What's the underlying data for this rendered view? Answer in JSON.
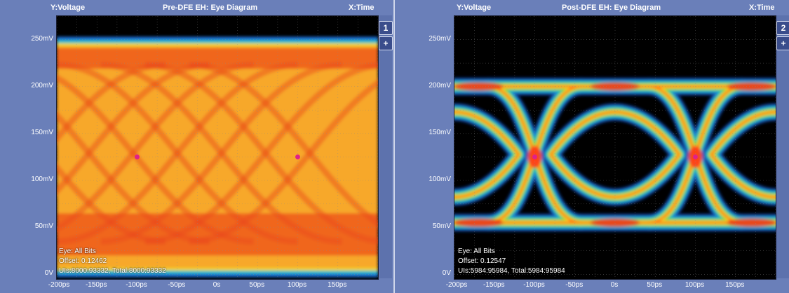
{
  "panels": [
    {
      "y_channel": "Y:Voltage",
      "title": "Pre-DFE EH: Eye Diagram",
      "x_channel": "X:Time",
      "badge": "1",
      "add_button": "+",
      "info": {
        "eye": "Eye: All Bits",
        "offset": "Offset: 0.12462",
        "uis": "UIs:8000:93332, Total:8000:93332"
      }
    },
    {
      "y_channel": "Y:Voltage",
      "title": "Post-DFE EH: Eye Diagram",
      "x_channel": "X:Time",
      "badge": "2",
      "add_button": "+",
      "info": {
        "eye": "Eye: All Bits",
        "offset": "Offset: 0.12547",
        "uis": "UIs:5984:95984, Total:5984:95984"
      }
    }
  ],
  "chart_data": [
    {
      "type": "heatmap",
      "title": "Pre-DFE EH: Eye Diagram",
      "xlabel": "X:Time",
      "ylabel": "Y:Voltage",
      "x_unit": "ps",
      "y_unit": "mV",
      "xlim": [
        -200,
        200
      ],
      "ylim": [
        -5,
        275
      ],
      "x_ticks": [
        "-200ps",
        "-150ps",
        "-100ps",
        "-50ps",
        "0s",
        "50ps",
        "100ps",
        "150ps"
      ],
      "x_tick_values": [
        -200,
        -150,
        -100,
        -50,
        0,
        50,
        100,
        150
      ],
      "y_ticks": [
        "0V",
        "50mV",
        "100mV",
        "150mV",
        "200mV",
        "250mV"
      ],
      "y_tick_values": [
        0,
        50,
        100,
        150,
        200,
        250
      ],
      "grid": true,
      "eye_open": false,
      "high_level": 243,
      "low_level": 5,
      "crossings": [
        {
          "x": -100,
          "y": 125
        },
        {
          "x": 100,
          "y": 125
        }
      ],
      "colors": {
        "background": "#000000",
        "marker": "#e0208a"
      }
    },
    {
      "type": "heatmap",
      "title": "Post-DFE EH: Eye Diagram",
      "xlabel": "X:Time",
      "ylabel": "Y:Voltage",
      "x_unit": "ps",
      "y_unit": "mV",
      "xlim": [
        -200,
        200
      ],
      "ylim": [
        -5,
        275
      ],
      "x_ticks": [
        "-200ps",
        "-150ps",
        "-100ps",
        "-50ps",
        "0s",
        "50ps",
        "100ps",
        "150ps"
      ],
      "x_tick_values": [
        -200,
        -150,
        -100,
        -50,
        0,
        50,
        100,
        150
      ],
      "y_ticks": [
        "0V",
        "50mV",
        "100mV",
        "150mV",
        "200mV",
        "250mV"
      ],
      "y_tick_values": [
        0,
        50,
        100,
        150,
        200,
        250
      ],
      "grid": true,
      "eye_open": true,
      "high_level": 200,
      "low_level": 55,
      "crossings": [
        {
          "x": -100,
          "y": 125
        },
        {
          "x": 100,
          "y": 125
        }
      ],
      "colors": {
        "background": "#000000",
        "marker": "#e0208a"
      }
    }
  ]
}
